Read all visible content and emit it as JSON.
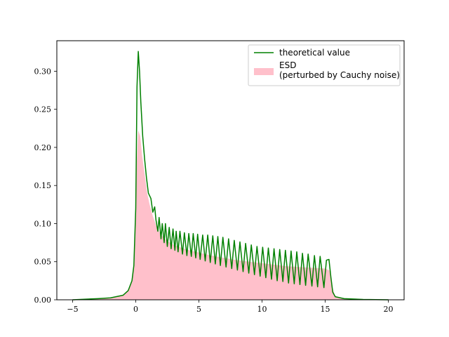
{
  "chart_data": {
    "type": "line",
    "title": "",
    "xlabel": "",
    "ylabel": "",
    "xlim": [
      -6.25,
      21.25
    ],
    "ylim": [
      0,
      0.34
    ],
    "xticks": [
      -5,
      0,
      5,
      10,
      15,
      20
    ],
    "xtick_labels": [
      "−5",
      "0",
      "5",
      "10",
      "15",
      "20"
    ],
    "yticks": [
      0.0,
      0.05,
      0.1,
      0.15,
      0.2,
      0.25,
      0.3
    ],
    "ytick_labels": [
      "0.00",
      "0.05",
      "0.10",
      "0.15",
      "0.20",
      "0.25",
      "0.30"
    ],
    "grid": false,
    "legend_position": "top-right",
    "series": [
      {
        "name": "theoretical value",
        "kind": "line",
        "color": "#008000",
        "points": [
          [
            -5,
            0.0
          ],
          [
            -3,
            0.0015
          ],
          [
            -2,
            0.0025
          ],
          [
            -1,
            0.006
          ],
          [
            -0.6,
            0.012
          ],
          [
            -0.3,
            0.025
          ],
          [
            -0.15,
            0.045
          ],
          [
            0.0,
            0.12
          ],
          [
            0.1,
            0.28
          ],
          [
            0.2,
            0.326
          ],
          [
            0.3,
            0.3
          ],
          [
            0.4,
            0.26
          ],
          [
            0.55,
            0.215
          ],
          [
            0.7,
            0.185
          ],
          [
            0.85,
            0.16
          ],
          [
            1.0,
            0.14
          ],
          [
            1.2,
            0.133
          ],
          [
            1.35,
            0.115
          ],
          [
            1.5,
            0.122
          ],
          [
            1.6,
            0.105
          ],
          [
            1.75,
            0.09
          ],
          [
            1.85,
            0.108
          ],
          [
            2.0,
            0.08
          ],
          [
            2.1,
            0.1
          ],
          [
            2.25,
            0.075
          ],
          [
            2.35,
            0.1
          ],
          [
            2.5,
            0.07
          ],
          [
            2.65,
            0.095
          ],
          [
            2.8,
            0.067
          ],
          [
            2.95,
            0.093
          ],
          [
            3.1,
            0.065
          ],
          [
            3.2,
            0.09
          ],
          [
            3.35,
            0.063
          ],
          [
            3.5,
            0.09
          ],
          [
            3.7,
            0.06
          ],
          [
            3.85,
            0.088
          ],
          [
            4.05,
            0.058
          ],
          [
            4.2,
            0.087
          ],
          [
            4.4,
            0.057
          ],
          [
            4.55,
            0.087
          ],
          [
            4.75,
            0.055
          ],
          [
            4.9,
            0.086
          ],
          [
            5.1,
            0.053
          ],
          [
            5.3,
            0.085
          ],
          [
            5.5,
            0.051
          ],
          [
            5.7,
            0.085
          ],
          [
            5.9,
            0.049
          ],
          [
            6.1,
            0.084
          ],
          [
            6.3,
            0.047
          ],
          [
            6.5,
            0.083
          ],
          [
            6.7,
            0.045
          ],
          [
            6.9,
            0.082
          ],
          [
            7.15,
            0.043
          ],
          [
            7.35,
            0.08
          ],
          [
            7.6,
            0.041
          ],
          [
            7.8,
            0.078
          ],
          [
            8.05,
            0.039
          ],
          [
            8.25,
            0.076
          ],
          [
            8.5,
            0.037
          ],
          [
            8.7,
            0.074
          ],
          [
            8.95,
            0.035
          ],
          [
            9.15,
            0.072
          ],
          [
            9.4,
            0.033
          ],
          [
            9.6,
            0.07
          ],
          [
            9.85,
            0.031
          ],
          [
            10.05,
            0.069
          ],
          [
            10.3,
            0.029
          ],
          [
            10.5,
            0.068
          ],
          [
            10.75,
            0.027
          ],
          [
            10.95,
            0.067
          ],
          [
            11.2,
            0.025
          ],
          [
            11.4,
            0.066
          ],
          [
            11.65,
            0.024
          ],
          [
            11.85,
            0.065
          ],
          [
            12.1,
            0.022
          ],
          [
            12.3,
            0.064
          ],
          [
            12.55,
            0.021
          ],
          [
            12.75,
            0.063
          ],
          [
            13.0,
            0.02
          ],
          [
            13.2,
            0.061
          ],
          [
            13.45,
            0.019
          ],
          [
            13.65,
            0.06
          ],
          [
            13.95,
            0.018
          ],
          [
            14.15,
            0.058
          ],
          [
            14.4,
            0.017
          ],
          [
            14.6,
            0.057
          ],
          [
            14.9,
            0.016
          ],
          [
            15.1,
            0.052
          ],
          [
            15.3,
            0.053
          ],
          [
            15.45,
            0.03
          ],
          [
            15.6,
            0.01
          ],
          [
            15.8,
            0.004
          ],
          [
            16.5,
            0.0015
          ],
          [
            18,
            0.0005
          ],
          [
            20,
            0.0
          ]
        ]
      },
      {
        "name": "ESD\n(perturbed by Cauchy noise)",
        "kind": "area",
        "color": "#ffc0cb",
        "points": [
          [
            -5,
            0.0
          ],
          [
            -3,
            0.0015
          ],
          [
            -2,
            0.0025
          ],
          [
            -1,
            0.006
          ],
          [
            -0.5,
            0.015
          ],
          [
            -0.25,
            0.03
          ],
          [
            -0.1,
            0.06
          ],
          [
            -0.05,
            0.1
          ],
          [
            0.05,
            0.17
          ],
          [
            0.2,
            0.222
          ],
          [
            0.35,
            0.215
          ],
          [
            0.5,
            0.19
          ],
          [
            0.7,
            0.165
          ],
          [
            0.9,
            0.14
          ],
          [
            1.1,
            0.125
          ],
          [
            1.35,
            0.11
          ],
          [
            1.6,
            0.098
          ],
          [
            2.0,
            0.085
          ],
          [
            2.5,
            0.077
          ],
          [
            3.0,
            0.072
          ],
          [
            4.0,
            0.066
          ],
          [
            5.0,
            0.062
          ],
          [
            6.0,
            0.058
          ],
          [
            7.0,
            0.055
          ],
          [
            8.0,
            0.052
          ],
          [
            9.0,
            0.05
          ],
          [
            10.0,
            0.048
          ],
          [
            11.0,
            0.046
          ],
          [
            12.0,
            0.044
          ],
          [
            13.0,
            0.043
          ],
          [
            14.0,
            0.042
          ],
          [
            15.0,
            0.041
          ],
          [
            15.4,
            0.038
          ],
          [
            15.6,
            0.015
          ],
          [
            15.8,
            0.004
          ],
          [
            16.5,
            0.0015
          ],
          [
            18,
            0.0005
          ],
          [
            20,
            0.0
          ]
        ]
      }
    ]
  }
}
